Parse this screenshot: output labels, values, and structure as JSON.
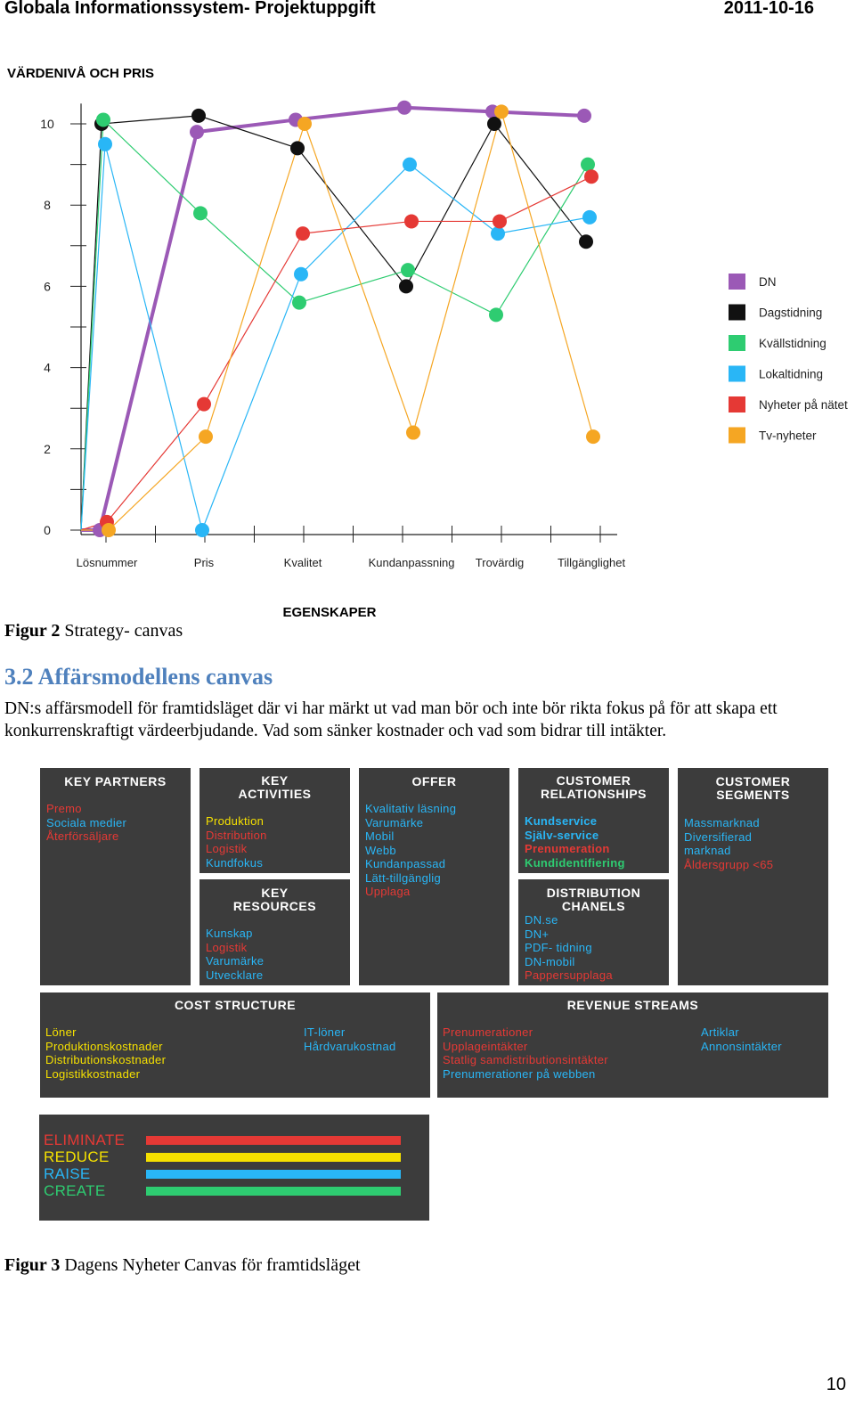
{
  "header": {
    "title": "Globala Informationssystem- Projektuppgift",
    "date": "2011-10-16"
  },
  "chart_data": {
    "type": "line",
    "title": "VÄRDENIVÅ OCH PRIS",
    "xlabel": "EGENSKAPER",
    "ylabel": "",
    "categories": [
      "Lösnummer",
      "Pris",
      "Kvalitet",
      "Kundanpassning",
      "Trovärdig",
      "Tillgänglighet"
    ],
    "yticks": [
      "0",
      "2",
      "4",
      "6",
      "8",
      "10"
    ],
    "ylim": [
      0,
      10.5
    ],
    "legend_position": "right",
    "series": [
      {
        "name": "DN",
        "color": "#9b59b6",
        "values": [
          0,
          9.8,
          10.1,
          10.4,
          10.3,
          10.2
        ],
        "start": 0
      },
      {
        "name": "Dagstidning",
        "color": "#111111",
        "values": [
          10,
          10.2,
          9.4,
          6.0,
          10.0,
          7.1
        ],
        "start": 0
      },
      {
        "name": "Kvällstidning",
        "color": "#2ecc71",
        "values": [
          10.1,
          7.8,
          5.6,
          6.4,
          5.3,
          9.0
        ],
        "start": 0
      },
      {
        "name": "Lokaltidning",
        "color": "#29b6f6",
        "values": [
          9.5,
          0,
          6.3,
          9.0,
          7.3,
          7.7
        ],
        "start": 0
      },
      {
        "name": "Nyheter på nätet",
        "color": "#e53935",
        "values": [
          0.2,
          3.1,
          7.3,
          7.6,
          7.6,
          8.7
        ],
        "start": 0
      },
      {
        "name": "Tv-nyheter",
        "color": "#f5a623",
        "values": [
          0,
          2.3,
          10.0,
          2.4,
          10.3,
          2.3
        ],
        "start": 0
      }
    ]
  },
  "figure2": {
    "label": "Figur 2",
    "text": "Strategy- canvas"
  },
  "section": {
    "title": "3.2 Affärsmodellens canvas"
  },
  "paragraph": "DN:s affärsmodell för framtidsläget där vi har märkt ut vad man bör och inte bör rikta fokus på för att skapa ett konkurrenskraftigt värdeerbjudande. Vad som sänker kostnader och vad som bidrar till intäkter.",
  "canvas": {
    "key_partners": {
      "title": "KEY PARTNERS",
      "items": [
        {
          "text": "Premo",
          "color": "red"
        },
        {
          "text": "Sociala medier",
          "color": "blue"
        },
        {
          "text": "Återförsäljare",
          "color": "red"
        }
      ]
    },
    "key_activities": {
      "title": "KEY\nACTIVITIES",
      "items": [
        {
          "text": "Produktion",
          "color": "yellow"
        },
        {
          "text": "Distribution",
          "color": "red"
        },
        {
          "text": "Logistik",
          "color": "red"
        },
        {
          "text": "Kundfokus",
          "color": "blue"
        }
      ]
    },
    "key_resources": {
      "title": "KEY\nRESOURCES",
      "items": [
        {
          "text": "Kunskap",
          "color": "blue"
        },
        {
          "text": "Logistik",
          "color": "red"
        },
        {
          "text": "Varumärke",
          "color": "blue"
        },
        {
          "text": "Utvecklare",
          "color": "blue"
        }
      ]
    },
    "offer": {
      "title": "OFFER",
      "items": [
        {
          "text": "Kvalitativ läsning",
          "color": "blue"
        },
        {
          "text": "Varumärke",
          "color": "blue"
        },
        {
          "text": "Mobil",
          "color": "blue"
        },
        {
          "text": "Webb",
          "color": "blue"
        },
        {
          "text": "Kundanpassad",
          "color": "blue"
        },
        {
          "text": "Lätt-tillgänglig",
          "color": "blue"
        },
        {
          "text": "Upplaga",
          "color": "red"
        }
      ]
    },
    "customer_relationships": {
      "title": "CUSTOMER\nRELATIONSHIPS",
      "items": [
        {
          "text": "Kundservice",
          "color": "blue"
        },
        {
          "text": "Själv-service",
          "color": "blue"
        },
        {
          "text": "Prenumeration",
          "color": "red"
        },
        {
          "text": "Kundidentifiering",
          "color": "green"
        }
      ]
    },
    "distribution_channels": {
      "title": "DISTRIBUTION\nCHANELS",
      "items": [
        {
          "text": "DN.se",
          "color": "blue"
        },
        {
          "text": "DN+",
          "color": "blue"
        },
        {
          "text": "PDF- tidning",
          "color": "blue"
        },
        {
          "text": "DN-mobil",
          "color": "blue"
        },
        {
          "text": "Pappersupplaga",
          "color": "red"
        }
      ]
    },
    "customer_segments": {
      "title": "CUSTOMER\nSEGMENTS",
      "items": [
        {
          "text": "Massmarknad",
          "color": "blue"
        },
        {
          "text": "Diversifierad",
          "color": "blue"
        },
        {
          "text": "marknad",
          "color": "blue"
        },
        {
          "text": "Åldersgrupp <65",
          "color": "red"
        }
      ]
    },
    "cost_structure": {
      "title": "COST STRUCTURE",
      "left": [
        {
          "text": "Löner",
          "color": "yellow"
        },
        {
          "text": "Produktionskostnader",
          "color": "yellow"
        },
        {
          "text": "Distributionskostnader",
          "color": "yellow"
        },
        {
          "text": "Logistikkostnader",
          "color": "yellow"
        }
      ],
      "right": [
        {
          "text": "IT-löner",
          "color": "blue"
        },
        {
          "text": "Hårdvarukostnad",
          "color": "blue"
        }
      ]
    },
    "revenue_streams": {
      "title": "REVENUE STREAMS",
      "left": [
        {
          "text": "Prenumerationer",
          "color": "red"
        },
        {
          "text": "Upplageintäkter",
          "color": "red"
        },
        {
          "text": "Statlig samdistributionsintäkter",
          "color": "red"
        },
        {
          "text": "Prenumerationer på webben",
          "color": "blue"
        }
      ],
      "right": [
        {
          "text": "Artiklar",
          "color": "blue"
        },
        {
          "text": "Annonsintäkter",
          "color": "blue"
        }
      ]
    }
  },
  "err_legend": [
    {
      "label": "ELIMINATE",
      "color": "#e53935"
    },
    {
      "label": "REDUCE",
      "color": "#f5e000"
    },
    {
      "label": "RAISE",
      "color": "#29b6f6"
    },
    {
      "label": "CREATE",
      "color": "#2ecc71"
    }
  ],
  "figure3": {
    "label": "Figur 3",
    "text": "Dagens Nyheter Canvas för framtidsläget"
  },
  "page_number": "10"
}
